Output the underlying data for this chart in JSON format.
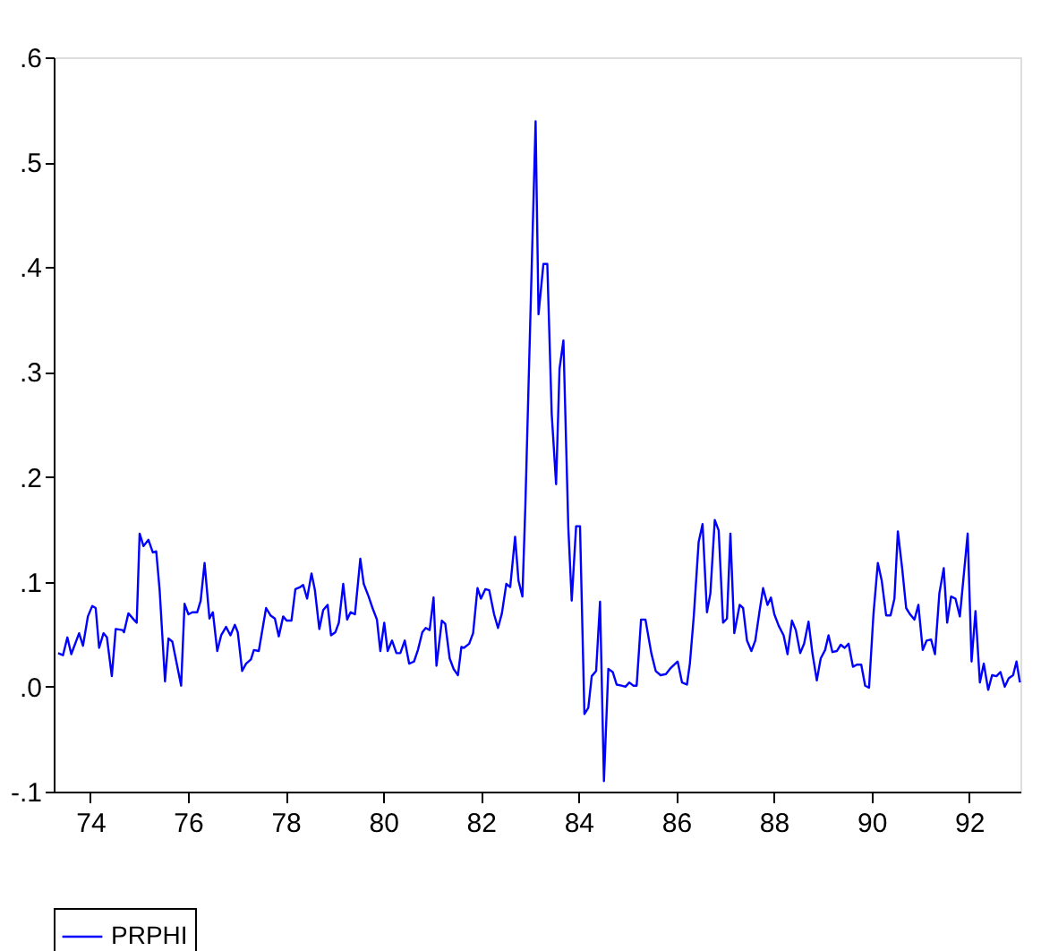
{
  "chart_data": {
    "type": "line",
    "x": [
      73.34,
      73.44,
      73.53,
      73.61,
      73.77,
      73.85,
      73.95,
      74.04,
      74.11,
      74.18,
      74.27,
      74.34,
      74.44,
      74.52,
      74.66,
      74.69,
      74.78,
      74.89,
      74.95,
      75.01,
      75.09,
      75.19,
      75.28,
      75.35,
      75.42,
      75.53,
      75.6,
      75.68,
      75.86,
      75.93,
      76.01,
      76.09,
      76.19,
      76.26,
      76.34,
      76.44,
      76.51,
      76.6,
      76.68,
      76.78,
      76.87,
      76.96,
      77.02,
      77.11,
      77.19,
      77.29,
      77.35,
      77.45,
      77.6,
      77.69,
      77.78,
      77.86,
      77.95,
      78.02,
      78.12,
      78.2,
      78.3,
      78.36,
      78.44,
      78.53,
      78.6,
      78.69,
      78.77,
      78.86,
      78.93,
      79.02,
      79.09,
      79.18,
      79.26,
      79.33,
      79.42,
      79.53,
      79.6,
      79.7,
      79.78,
      79.87,
      79.94,
      80.02,
      80.09,
      80.18,
      80.27,
      80.35,
      80.44,
      80.53,
      80.63,
      80.71,
      80.8,
      80.87,
      80.95,
      81.03,
      81.09,
      81.2,
      81.27,
      81.36,
      81.44,
      81.53,
      81.6,
      81.65,
      81.76,
      81.84,
      81.93,
      82.0,
      82.09,
      82.17,
      82.27,
      82.35,
      82.43,
      82.52,
      82.6,
      82.7,
      82.77,
      82.85,
      82.91,
      83.12,
      83.18,
      83.28,
      83.36,
      83.45,
      83.54,
      83.61,
      83.69,
      83.79,
      83.86,
      83.95,
      84.03,
      84.12,
      84.2,
      84.27,
      84.36,
      84.44,
      84.52,
      84.61,
      84.7,
      84.78,
      84.88,
      84.96,
      85.04,
      85.12,
      85.19,
      85.28,
      85.37,
      85.49,
      85.58,
      85.68,
      85.79,
      85.89,
      86.03,
      86.12,
      86.22,
      86.28,
      86.36,
      86.46,
      86.54,
      86.63,
      86.7,
      86.79,
      86.87,
      86.96,
      87.04,
      87.11,
      87.19,
      87.3,
      87.37,
      87.45,
      87.54,
      87.62,
      87.71,
      87.78,
      87.87,
      87.94,
      88.01,
      88.1,
      88.2,
      88.28,
      88.37,
      88.45,
      88.54,
      88.62,
      88.71,
      88.79,
      88.88,
      88.96,
      89.05,
      89.12,
      89.2,
      89.29,
      89.37,
      89.45,
      89.53,
      89.62,
      89.7,
      89.79,
      89.87,
      89.95,
      90.04,
      90.13,
      90.21,
      90.3,
      90.39,
      90.47,
      90.54,
      90.63,
      90.71,
      90.79,
      90.88,
      90.96,
      91.05,
      91.13,
      91.22,
      91.3,
      91.39,
      91.48,
      91.55,
      91.63,
      91.72,
      91.81,
      91.97,
      92.05,
      92.13,
      92.22,
      92.3,
      92.39,
      92.47,
      92.56,
      92.64,
      92.73,
      92.81,
      92.9,
      92.97,
      93.04
    ],
    "series": [
      {
        "name": "PRPHI",
        "color": "#0000ff",
        "values": [
          0.032,
          0.03,
          0.047,
          0.031,
          0.051,
          0.039,
          0.067,
          0.077,
          0.075,
          0.037,
          0.051,
          0.047,
          0.01,
          0.055,
          0.054,
          0.052,
          0.07,
          0.064,
          0.061,
          0.146,
          0.134,
          0.14,
          0.128,
          0.129,
          0.092,
          0.005,
          0.046,
          0.043,
          0.001,
          0.079,
          0.069,
          0.071,
          0.071,
          0.082,
          0.118,
          0.065,
          0.071,
          0.034,
          0.049,
          0.057,
          0.049,
          0.059,
          0.052,
          0.015,
          0.022,
          0.026,
          0.035,
          0.034,
          0.075,
          0.068,
          0.065,
          0.048,
          0.067,
          0.063,
          0.063,
          0.093,
          0.095,
          0.097,
          0.084,
          0.108,
          0.092,
          0.055,
          0.073,
          0.078,
          0.049,
          0.052,
          0.061,
          0.098,
          0.064,
          0.071,
          0.069,
          0.122,
          0.098,
          0.086,
          0.075,
          0.064,
          0.034,
          0.061,
          0.034,
          0.044,
          0.032,
          0.032,
          0.044,
          0.022,
          0.024,
          0.035,
          0.052,
          0.056,
          0.054,
          0.085,
          0.02,
          0.063,
          0.06,
          0.027,
          0.017,
          0.011,
          0.038,
          0.037,
          0.041,
          0.051,
          0.094,
          0.084,
          0.093,
          0.092,
          0.069,
          0.056,
          0.07,
          0.098,
          0.095,
          0.143,
          0.101,
          0.086,
          0.172,
          0.539,
          0.355,
          0.403,
          0.403,
          0.26,
          0.193,
          0.303,
          0.33,
          0.152,
          0.082,
          0.153,
          0.153,
          -0.026,
          -0.02,
          0.01,
          0.015,
          0.081,
          -0.09,
          0.017,
          0.014,
          0.002,
          0.001,
          0.0,
          0.004,
          0.001,
          0.001,
          0.064,
          0.064,
          0.032,
          0.015,
          0.011,
          0.012,
          0.018,
          0.024,
          0.004,
          0.002,
          0.022,
          0.067,
          0.138,
          0.155,
          0.071,
          0.089,
          0.159,
          0.149,
          0.061,
          0.065,
          0.146,
          0.051,
          0.078,
          0.075,
          0.044,
          0.034,
          0.044,
          0.073,
          0.094,
          0.078,
          0.085,
          0.069,
          0.058,
          0.049,
          0.031,
          0.063,
          0.054,
          0.032,
          0.041,
          0.062,
          0.032,
          0.006,
          0.027,
          0.035,
          0.049,
          0.033,
          0.034,
          0.04,
          0.037,
          0.041,
          0.019,
          0.021,
          0.021,
          0.001,
          -0.001,
          0.069,
          0.118,
          0.101,
          0.068,
          0.068,
          0.084,
          0.148,
          0.112,
          0.075,
          0.069,
          0.064,
          0.078,
          0.035,
          0.044,
          0.045,
          0.031,
          0.089,
          0.113,
          0.061,
          0.086,
          0.084,
          0.067,
          0.146,
          0.024,
          0.072,
          0.004,
          0.022,
          -0.003,
          0.011,
          0.01,
          0.014,
          0.0,
          0.008,
          0.011,
          0.024,
          0.004
        ]
      }
    ],
    "xlim": [
      73.25,
      93.05
    ],
    "xticks": [
      74,
      76,
      78,
      80,
      82,
      84,
      86,
      88,
      90,
      92
    ],
    "ylim": [
      -0.1,
      0.6
    ],
    "yticks": [
      {
        "value": -0.1,
        "label": "-.1"
      },
      {
        "value": 0.0,
        "label": ".0"
      },
      {
        "value": 0.1,
        "label": ".1"
      },
      {
        "value": 0.2,
        "label": ".2"
      },
      {
        "value": 0.3,
        "label": ".3"
      },
      {
        "value": 0.4,
        "label": ".4"
      },
      {
        "value": 0.5,
        "label": ".5"
      },
      {
        "value": 0.6,
        "label": ".6"
      }
    ],
    "grid": false,
    "legend": "bottom",
    "line_style": "solid",
    "marker": "none"
  }
}
